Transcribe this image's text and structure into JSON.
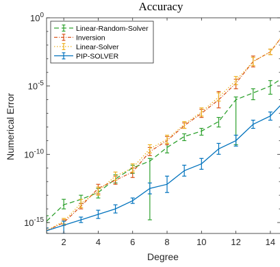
{
  "chart_data": {
    "type": "line",
    "title": "Accuracy",
    "xlabel": "Degree",
    "ylabel": "Numerical Error",
    "x_scale": "linear",
    "y_scale": "log",
    "xlim": [
      1,
      14.6
    ],
    "ylim_exp": [
      -15.8,
      0
    ],
    "x_ticks": [
      2,
      4,
      6,
      8,
      10,
      12,
      14
    ],
    "y_ticks": [
      {
        "exp": 0,
        "base": "10",
        "sup": "0"
      },
      {
        "exp": -5,
        "base": "10",
        "sup": "-5"
      },
      {
        "exp": -10,
        "base": "10",
        "sup": "-10"
      },
      {
        "exp": -15,
        "base": "10",
        "sup": "-15"
      }
    ],
    "grid": false,
    "legend_position": "top-left",
    "x": [
      1,
      2,
      3,
      4,
      5,
      6,
      7,
      8,
      9,
      10,
      11,
      12,
      13,
      14,
      14.6
    ],
    "series": [
      {
        "name": "Linear-Random-Solver",
        "color": "#2ca02c",
        "dash": "7,4",
        "y_exp": [
          -14.9,
          -13.7,
          -13.3,
          -12.8,
          -11.8,
          -11.0,
          -10.5,
          -9.5,
          -8.7,
          -8.3,
          -7.6,
          -6.0,
          -5.5,
          -5.0,
          -4.5
        ],
        "err_exp": [
          [
            -15.0,
            -14.5
          ],
          [
            -14.0,
            -13.3
          ],
          [
            -13.6,
            -13.0
          ],
          [
            -13.2,
            -12.5
          ],
          [
            -12.1,
            -11.5
          ],
          [
            -11.4,
            -10.8
          ],
          [
            -14.8,
            -10.3
          ],
          [
            -9.9,
            -9.2
          ],
          [
            -9.0,
            -8.5
          ],
          [
            -8.6,
            -8.1
          ],
          [
            -8.0,
            -7.3
          ],
          [
            -9.3,
            -5.8
          ],
          [
            -6.0,
            -5.2
          ],
          [
            -5.6,
            -4.6
          ],
          null
        ]
      },
      {
        "name": "Inversion",
        "color": "#d95319",
        "dash": "5,2,1,2",
        "y_exp": [
          -15.6,
          -15.0,
          -13.8,
          -12.5,
          -11.9,
          -11.3,
          -9.8,
          -9.0,
          -7.9,
          -7.0,
          -6.0,
          -4.8,
          -3.2,
          -2.5,
          -1.5
        ],
        "err_exp": [
          [
            -15.8,
            -15.4
          ],
          [
            -15.2,
            -14.8
          ],
          [
            -14.0,
            -13.6
          ],
          [
            -12.9,
            -12.2
          ],
          [
            -12.2,
            -11.6
          ],
          [
            -11.7,
            -11.0
          ],
          [
            -10.1,
            -9.5
          ],
          [
            -9.3,
            -8.7
          ],
          [
            -8.1,
            -7.7
          ],
          [
            -7.3,
            -6.7
          ],
          [
            -6.6,
            -5.4
          ],
          [
            -5.2,
            -4.5
          ],
          [
            -3.6,
            -2.8
          ],
          [
            -2.7,
            -2.3
          ],
          null
        ]
      },
      {
        "name": "Linear-Solver",
        "color": "#edb120",
        "dash": "1.5,2.5",
        "y_exp": [
          -15.6,
          -14.9,
          -13.6,
          -12.7,
          -11.6,
          -11.0,
          -9.6,
          -8.9,
          -7.8,
          -6.9,
          -5.8,
          -4.6,
          -3.2,
          -2.5,
          -1.5
        ],
        "err_exp": [
          [
            -15.8,
            -15.4
          ],
          [
            -15.1,
            -14.7
          ],
          [
            -13.9,
            -13.3
          ],
          [
            -13.0,
            -12.4
          ],
          [
            -11.9,
            -11.3
          ],
          [
            -11.3,
            -10.7
          ],
          [
            -9.9,
            -9.3
          ],
          [
            -9.2,
            -8.6
          ],
          [
            -8.1,
            -7.6
          ],
          [
            -7.2,
            -6.6
          ],
          [
            -6.1,
            -5.5
          ],
          [
            -4.9,
            -4.3
          ],
          [
            -3.5,
            -2.9
          ],
          [
            -2.7,
            -2.3
          ],
          null
        ]
      },
      {
        "name": "PIP-SOLVER",
        "color": "#0072bd",
        "dash": "",
        "y_exp": [
          -15.6,
          -15.2,
          -14.8,
          -14.4,
          -14.0,
          -13.4,
          -12.5,
          -12.2,
          -11.2,
          -10.7,
          -9.6,
          -9.0,
          -7.8,
          -7.2,
          -6.4
        ],
        "err_exp": [
          [
            -15.8,
            -15.4
          ],
          [
            -15.8,
            -14.9
          ],
          [
            -15.0,
            -14.6
          ],
          [
            -14.7,
            -14.1
          ],
          [
            -14.3,
            -13.7
          ],
          [
            -13.6,
            -13.2
          ],
          [
            -12.9,
            -12.1
          ],
          [
            -12.8,
            -11.6
          ],
          [
            -11.6,
            -10.8
          ],
          [
            -11.1,
            -10.3
          ],
          [
            -10.0,
            -9.2
          ],
          [
            -9.4,
            -8.6
          ],
          [
            -8.1,
            -7.5
          ],
          [
            -7.5,
            -6.9
          ],
          null
        ]
      }
    ]
  }
}
